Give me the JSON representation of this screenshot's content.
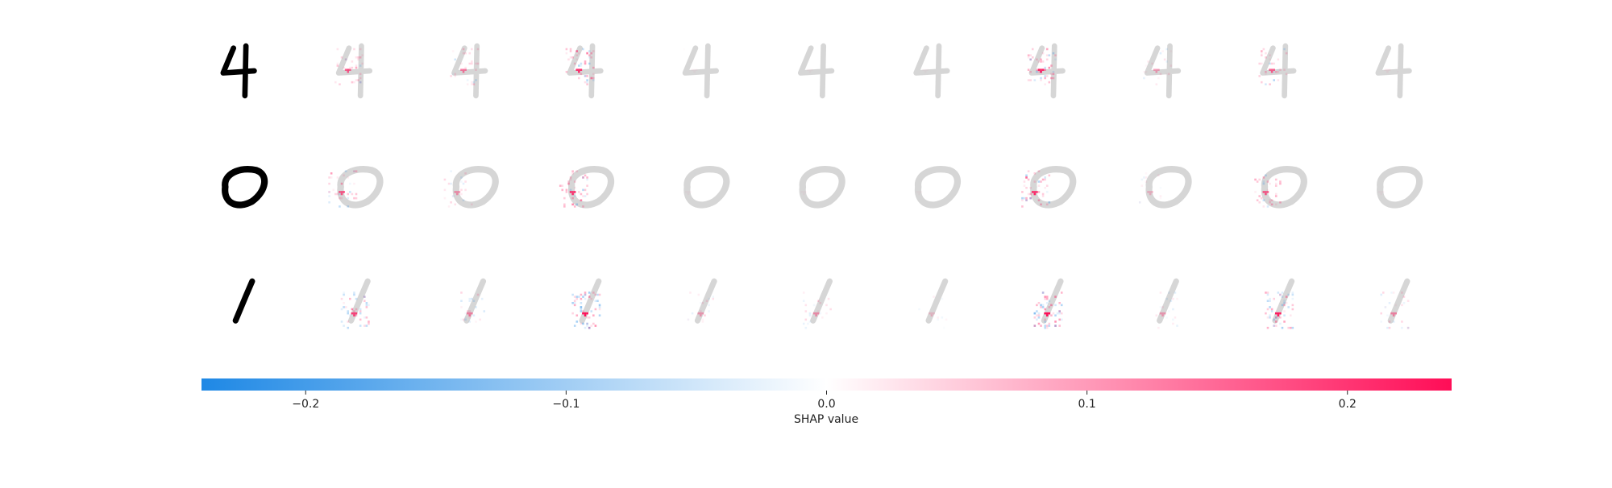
{
  "chart_data": {
    "type": "heatmap",
    "rows": [
      {
        "digit": "4",
        "row_strengths": [
          0.55,
          0.45,
          0.75,
          0.03,
          0.02,
          0.02,
          0.8,
          0.3,
          0.55,
          0.05
        ]
      },
      {
        "digit": "0",
        "row_strengths": [
          0.6,
          0.35,
          0.75,
          0.03,
          0.03,
          0.02,
          0.75,
          0.2,
          0.6,
          0.03
        ]
      },
      {
        "digit": "1",
        "row_strengths": [
          0.7,
          0.4,
          0.95,
          0.3,
          0.35,
          0.15,
          1.0,
          0.3,
          0.85,
          0.4
        ]
      }
    ],
    "colorbar": {
      "label": "SHAP value",
      "range": [
        -0.24,
        0.24
      ],
      "ticks": [
        {
          "value": -0.2,
          "label": "−0.2"
        },
        {
          "value": -0.1,
          "label": "−0.1"
        },
        {
          "value": 0.0,
          "label": "0.0"
        },
        {
          "value": 0.1,
          "label": "0.1"
        },
        {
          "value": 0.2,
          "label": "0.2"
        }
      ],
      "color_negative": "#1e88e5",
      "color_zero": "#ffffff",
      "color_positive": "#ff0d57"
    },
    "grid": false
  }
}
